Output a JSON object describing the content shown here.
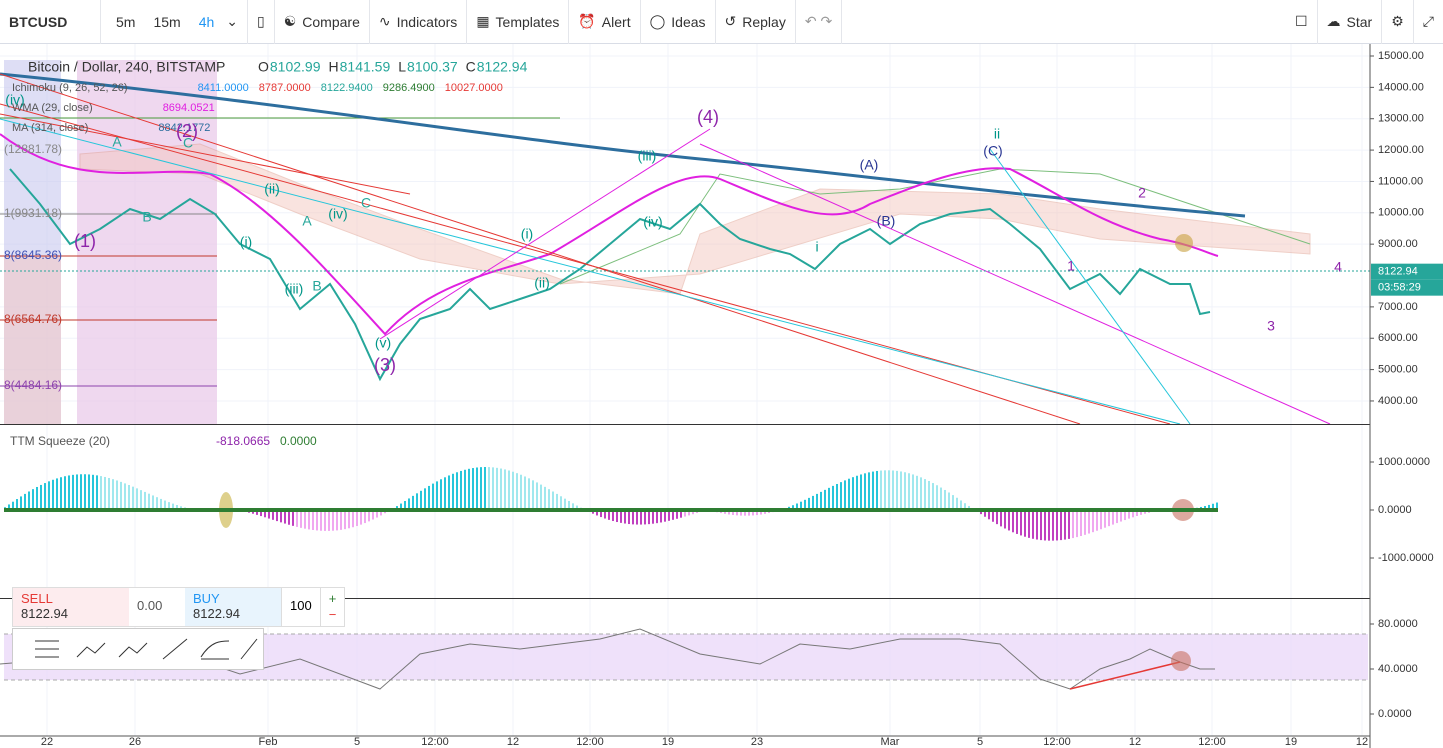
{
  "toolbar": {
    "symbol": "BTCUSD",
    "intervals": [
      "5m",
      "15m",
      "4h"
    ],
    "buttons": [
      "Compare",
      "Indicators",
      "Templates",
      "Alert",
      "Ideas",
      "Replay"
    ],
    "star": "Star"
  },
  "main_pane": {
    "title": "Bitcoin / Dollar, 240, BITSTAMP",
    "ohlc": [
      {
        "label": "O",
        "value": "8102.99"
      },
      {
        "label": "H",
        "value": "8141.59"
      },
      {
        "label": "L",
        "value": "8100.37"
      },
      {
        "label": "C",
        "value": "8122.94"
      }
    ],
    "indicators": [
      {
        "name": "Ichimoku (9, 26, 52, 26)",
        "values": [
          "8411.0000",
          "8787.0000",
          "8122.9400",
          "9286.4900",
          "10027.0000"
        ]
      },
      {
        "name": "WMA (29, close)",
        "values": [
          "8694.0521"
        ]
      },
      {
        "name": "MA (314, close)",
        "values": [
          "8842.1772"
        ]
      }
    ],
    "fib_labels": [
      "(12881.78)",
      "1(9931.18)",
      "8(8645.36)",
      "8(6564.76)",
      "8(4484.16)"
    ],
    "wave_labels": [
      "(iv)",
      "(1)",
      "(2)",
      "A",
      "B",
      "C",
      "(ii)",
      "(i)",
      "(iii)",
      "A",
      "B",
      "(iv)",
      "C",
      "(v)",
      "(3)",
      "(i)",
      "(ii)",
      "(iii)",
      "(iv)",
      "(4)",
      "(A)",
      "(B)",
      "(C)",
      "ii",
      "i",
      "1",
      "2",
      "3",
      "4"
    ],
    "price_ticks": [
      {
        "value": 15000,
        "label": "15000.00"
      },
      {
        "value": 14000,
        "label": "14000.00"
      },
      {
        "value": 13000,
        "label": "13000.00"
      },
      {
        "value": 12000,
        "label": "12000.00"
      },
      {
        "value": 11000,
        "label": "11000.00"
      },
      {
        "value": 10000,
        "label": "10000.00"
      },
      {
        "value": 9000,
        "label": "9000.00"
      },
      {
        "value": 7000,
        "label": "7000.00"
      },
      {
        "value": 6000,
        "label": "6000.00"
      },
      {
        "value": 5000,
        "label": "5000.00"
      },
      {
        "value": 4000,
        "label": "4000.00"
      }
    ],
    "last_price": {
      "value": 8122.94,
      "label": "8122.94"
    },
    "countdown": "03:58:29"
  },
  "ttm_pane": {
    "name": "TTM Squeeze (20)",
    "values": [
      "-818.0665",
      "0.0000"
    ],
    "ticks": [
      {
        "value": 1000,
        "label": "1000.0000"
      },
      {
        "value": 0,
        "label": "0.0000"
      },
      {
        "value": -1000,
        "label": "-1000.0000"
      }
    ]
  },
  "rsi_pane": {
    "ticks": [
      {
        "value": 80,
        "label": "80.0000"
      },
      {
        "value": 40,
        "label": "40.0000"
      },
      {
        "value": 0,
        "label": "0.0000"
      }
    ]
  },
  "trade_widget": {
    "sell": "SELL",
    "sell_price": "8122.94",
    "spread": "0.00",
    "buy": "BUY",
    "buy_price": "8122.94",
    "quantity": "100"
  },
  "x_axis": [
    "22",
    "26",
    "Feb",
    "5",
    "12:00",
    "12",
    "12:00",
    "19",
    "23",
    "Mar",
    "5",
    "12:00",
    "12",
    "12:00",
    "19",
    "12"
  ]
}
